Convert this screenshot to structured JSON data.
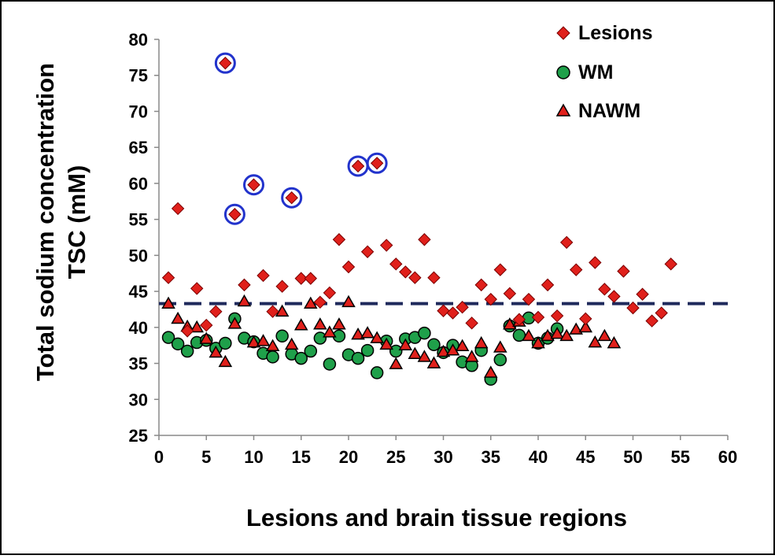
{
  "chart_data": {
    "type": "scatter",
    "xlabel": "Lesions and brain tissue regions",
    "ylabel_line1": "Total sodium concentration",
    "ylabel_line2": "TSC (mM)",
    "xlim": [
      0,
      60
    ],
    "ylim": [
      25,
      80
    ],
    "x_ticks": [
      0,
      5,
      10,
      15,
      20,
      25,
      30,
      35,
      40,
      45,
      50,
      55,
      60
    ],
    "y_ticks": [
      25,
      30,
      35,
      40,
      45,
      50,
      55,
      60,
      65,
      70,
      75,
      80
    ],
    "threshold_line": {
      "y": 43.3,
      "style": "dashed",
      "color": "#1f2a5c"
    },
    "legend_position": "top-right",
    "colors": {
      "lesions": "#e0201b",
      "wm": "#1fa04a",
      "nawm": "#e0201b",
      "circle": "#2233cc"
    },
    "series": [
      {
        "name": "Lesions",
        "marker": "diamond",
        "points": [
          [
            1,
            46.9
          ],
          [
            2,
            56.5
          ],
          [
            3,
            39.5
          ],
          [
            4,
            45.4
          ],
          [
            5,
            40.3
          ],
          [
            6,
            42.2
          ],
          [
            7,
            76.7
          ],
          [
            8,
            55.7
          ],
          [
            9,
            45.9
          ],
          [
            10,
            59.8
          ],
          [
            11,
            47.2
          ],
          [
            12,
            42.2
          ],
          [
            13,
            45.7
          ],
          [
            14,
            58.0
          ],
          [
            15,
            46.8
          ],
          [
            16,
            46.8
          ],
          [
            17,
            43.5
          ],
          [
            18,
            44.8
          ],
          [
            19,
            52.2
          ],
          [
            20,
            48.4
          ],
          [
            21,
            62.4
          ],
          [
            22,
            50.5
          ],
          [
            23,
            62.8
          ],
          [
            24,
            51.4
          ],
          [
            25,
            48.8
          ],
          [
            26,
            47.7
          ],
          [
            27,
            46.9
          ],
          [
            28,
            52.2
          ],
          [
            29,
            46.9
          ],
          [
            30,
            42.3
          ],
          [
            31,
            42.0
          ],
          [
            32,
            42.8
          ],
          [
            33,
            40.6
          ],
          [
            34,
            45.9
          ],
          [
            35,
            43.9
          ],
          [
            36,
            48.0
          ],
          [
            37,
            44.7
          ],
          [
            38,
            41.1
          ],
          [
            39,
            43.9
          ],
          [
            40,
            41.4
          ],
          [
            41,
            45.9
          ],
          [
            42,
            41.6
          ],
          [
            43,
            51.8
          ],
          [
            44,
            48.0
          ],
          [
            45,
            41.2
          ],
          [
            46,
            49.0
          ],
          [
            47,
            45.3
          ],
          [
            48,
            44.3
          ],
          [
            49,
            47.8
          ],
          [
            50,
            42.7
          ],
          [
            51,
            44.6
          ],
          [
            52,
            40.9
          ],
          [
            53,
            42.0
          ],
          [
            54,
            48.8
          ]
        ]
      },
      {
        "name": "WM",
        "marker": "circle",
        "points": [
          [
            1,
            38.6
          ],
          [
            2,
            37.7
          ],
          [
            3,
            36.7
          ],
          [
            4,
            37.9
          ],
          [
            5,
            38.2
          ],
          [
            6,
            37.1
          ],
          [
            7,
            37.8
          ],
          [
            8,
            41.2
          ],
          [
            9,
            38.5
          ],
          [
            10,
            38.0
          ],
          [
            11,
            36.4
          ],
          [
            12,
            35.9
          ],
          [
            13,
            38.8
          ],
          [
            14,
            36.3
          ],
          [
            15,
            35.7
          ],
          [
            16,
            36.7
          ],
          [
            17,
            38.5
          ],
          [
            18,
            34.9
          ],
          [
            19,
            38.8
          ],
          [
            20,
            36.2
          ],
          [
            21,
            35.7
          ],
          [
            22,
            36.8
          ],
          [
            23,
            33.7
          ],
          [
            24,
            38.1
          ],
          [
            25,
            36.7
          ],
          [
            26,
            38.4
          ],
          [
            27,
            38.6
          ],
          [
            28,
            39.2
          ],
          [
            29,
            37.6
          ],
          [
            30,
            36.5
          ],
          [
            31,
            37.5
          ],
          [
            32,
            35.2
          ],
          [
            33,
            34.7
          ],
          [
            34,
            36.8
          ],
          [
            35,
            32.8
          ],
          [
            36,
            35.5
          ],
          [
            37,
            40.2
          ],
          [
            38,
            38.9
          ],
          [
            39,
            41.3
          ],
          [
            40,
            37.8
          ],
          [
            41,
            38.5
          ],
          [
            42,
            39.8
          ]
        ]
      },
      {
        "name": "NAWM",
        "marker": "triangle",
        "points": [
          [
            1,
            43.3
          ],
          [
            2,
            41.2
          ],
          [
            3,
            40.1
          ],
          [
            4,
            40.0
          ],
          [
            5,
            38.4
          ],
          [
            6,
            36.5
          ],
          [
            7,
            35.2
          ],
          [
            8,
            40.5
          ],
          [
            9,
            43.6
          ],
          [
            10,
            37.9
          ],
          [
            11,
            38.1
          ],
          [
            12,
            37.4
          ],
          [
            13,
            42.2
          ],
          [
            14,
            37.6
          ],
          [
            15,
            40.3
          ],
          [
            16,
            43.3
          ],
          [
            17,
            40.4
          ],
          [
            18,
            39.3
          ],
          [
            19,
            40.4
          ],
          [
            20,
            43.5
          ],
          [
            21,
            39.0
          ],
          [
            22,
            39.2
          ],
          [
            23,
            38.5
          ],
          [
            24,
            37.6
          ],
          [
            25,
            34.9
          ],
          [
            26,
            37.5
          ],
          [
            27,
            36.3
          ],
          [
            28,
            35.9
          ],
          [
            29,
            35.0
          ],
          [
            30,
            36.6
          ],
          [
            31,
            36.8
          ],
          [
            32,
            37.4
          ],
          [
            33,
            35.9
          ],
          [
            34,
            37.8
          ],
          [
            35,
            33.7
          ],
          [
            36,
            37.2
          ],
          [
            37,
            40.4
          ],
          [
            38,
            40.8
          ],
          [
            39,
            38.8
          ],
          [
            40,
            37.8
          ],
          [
            41,
            38.8
          ],
          [
            42,
            39.1
          ],
          [
            43,
            38.8
          ],
          [
            44,
            39.7
          ],
          [
            45,
            40.0
          ],
          [
            46,
            37.9
          ],
          [
            47,
            38.8
          ],
          [
            48,
            37.8
          ]
        ]
      }
    ],
    "highlighted_points": [
      [
        7,
        76.7
      ],
      [
        8,
        55.7
      ],
      [
        10,
        59.8
      ],
      [
        14,
        58.0
      ],
      [
        21,
        62.4
      ],
      [
        23,
        62.8
      ]
    ]
  }
}
